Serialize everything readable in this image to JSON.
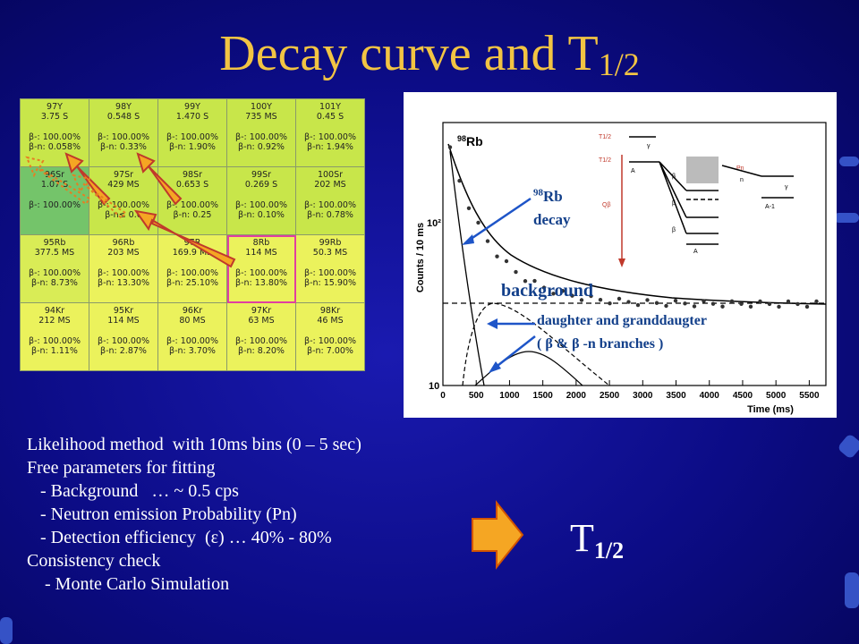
{
  "title": {
    "main": "Decay curve and T",
    "sub": "1/2"
  },
  "nuclide_chart": [
    [
      {
        "name": "97Y",
        "halflife": "3.75 S",
        "d1": "β-: 100.00%",
        "d2": "β-n: 0.058%"
      },
      {
        "name": "98Y",
        "halflife": "0.548 S",
        "d1": "β-: 100.00%",
        "d2": "β-n: 0.33%"
      },
      {
        "name": "99Y",
        "halflife": "1.470 S",
        "d1": "β-: 100.00%",
        "d2": "β-n: 1.90%"
      },
      {
        "name": "100Y",
        "halflife": "735 MS",
        "d1": "β-: 100.00%",
        "d2": "β-n: 0.92%"
      },
      {
        "name": "101Y",
        "halflife": "0.45 S",
        "d1": "β-: 100.00%",
        "d2": "β-n: 1.94%"
      }
    ],
    [
      {
        "name": "96Sr",
        "halflife": "1.07 S",
        "d1": "β-: 100.00%",
        "d2": ""
      },
      {
        "name": "97Sr",
        "halflife": "429 MS",
        "d1": "β-: 100.00%",
        "d2": "β-n≤ 0.0"
      },
      {
        "name": "98Sr",
        "halflife": "0.653 S",
        "d1": "β-: 100.00%",
        "d2": "β-n: 0.25"
      },
      {
        "name": "99Sr",
        "halflife": "0.269 S",
        "d1": "β-: 100.00%",
        "d2": "β-n: 0.10%"
      },
      {
        "name": "100Sr",
        "halflife": "202 MS",
        "d1": "β-: 100.00%",
        "d2": "β-n: 0.78%"
      }
    ],
    [
      {
        "name": "95Rb",
        "halflife": "377.5 MS",
        "d1": "β-: 100.00%",
        "d2": "β-n: 8.73%"
      },
      {
        "name": "96Rb",
        "halflife": "203 MS",
        "d1": "β-: 100.00%",
        "d2": "β-n: 13.30%"
      },
      {
        "name": "97R",
        "halflife": "169.9 MS",
        "d1": "β-: 100.00%",
        "d2": "β-n: 25.10%"
      },
      {
        "name": "8Rb",
        "halflife": "114 MS",
        "d1": "β-: 100.00%",
        "d2": "β-n: 13.80%"
      },
      {
        "name": "99Rb",
        "halflife": "50.3 MS",
        "d1": "β-: 100.00%",
        "d2": "β-n: 15.90%"
      }
    ],
    [
      {
        "name": "94Kr",
        "halflife": "212 MS",
        "d1": "β-: 100.00%",
        "d2": "β-n: 1.11%"
      },
      {
        "name": "95Kr",
        "halflife": "114 MS",
        "d1": "β-: 100.00%",
        "d2": "β-n: 2.87%"
      },
      {
        "name": "96Kr",
        "halflife": "80 MS",
        "d1": "β-: 100.00%",
        "d2": "β-n: 3.70%"
      },
      {
        "name": "97Kr",
        "halflife": "63 MS",
        "d1": "β-: 100.00%",
        "d2": "β-n: 8.20%"
      },
      {
        "name": "98Kr",
        "halflife": "46 MS",
        "d1": "β-: 100.00%",
        "d2": "β-n: 7.00%"
      }
    ]
  ],
  "plot": {
    "isotope": "98Rb",
    "ylabel": "Counts / 10 ms",
    "xlabel": "Time (ms)",
    "y_ticks": [
      "10²",
      "10"
    ],
    "x_ticks": [
      "0",
      "500",
      "1000",
      "1500",
      "2000",
      "2500",
      "3000",
      "3500",
      "4000",
      "4500",
      "5000",
      "5500"
    ],
    "annot_decay_sup": "98",
    "annot_decay_el": "Rb",
    "annot_decay_word": "decay",
    "annot_background": "background",
    "annot_daughter": "daughter and granddaugter",
    "annot_branches": "( β & β -n branches )"
  },
  "scheme": {
    "t12a": "T1/2",
    "t12b": "T1/2",
    "qb": "Qβ",
    "pn": "Pn",
    "n": "n",
    "gamma": "γ",
    "beta": "β",
    "parent": "A",
    "daughter1": "A",
    "daughter2": "A-1"
  },
  "body_lines": [
    "Likelihood method  with 10ms bins (0 – 5 sec)",
    "Free parameters for fitting",
    "   - Background   … ~ 0.5 cps",
    "   - Neutron emission Probability (Pn)",
    "   - Detection efficiency  (ε) … 40% - 80%",
    "Consistency check",
    "    - Monte Carlo Simulation"
  ],
  "result": {
    "main": "T",
    "sub": "1/2"
  },
  "colors": {
    "title": "#f2c443",
    "background": "#0c0c86",
    "arrow": "#f5a623",
    "highlight": "#e040a0"
  }
}
